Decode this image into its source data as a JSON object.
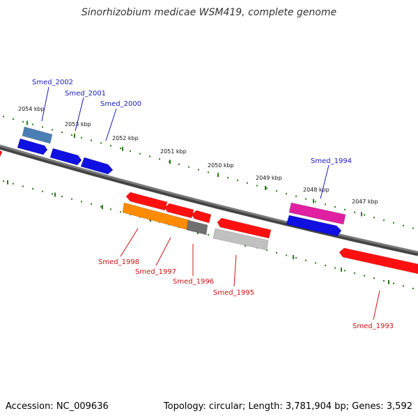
{
  "title": "Sinorhizobium medicae WSM419, complete genome",
  "footer": {
    "accession": "Accession: NC_009636",
    "topology": "Topology: circular; Length: 3,781,904 bp; Genes: 3,592"
  },
  "scale": {
    "color": "#2a7a1a",
    "labels": [
      "2054 kbp",
      "2053 kbp",
      "2052 kbp",
      "2051 kbp",
      "2050 kbp",
      "2049 kbp",
      "2048 kbp",
      "2047 kbp"
    ]
  },
  "colors": {
    "backbone": "#7a7a7a",
    "label_forward": "#1a1ac0",
    "label_reverse": "#d01010"
  },
  "genes_forward": [
    {
      "name": "Smed_2002",
      "color": "#4a7fb5"
    },
    {
      "name": "Smed_2001",
      "color": "#1010e0"
    },
    {
      "name": "Smed_2000",
      "color": "#1010e0"
    },
    {
      "name": "Smed_1994",
      "color": "#e020a0"
    }
  ],
  "genes_reverse": [
    {
      "name": "Smed_1998",
      "color": "#ff8c00"
    },
    {
      "name": "Smed_1997",
      "color": "#ff1010"
    },
    {
      "name": "Smed_1996",
      "color": "#ff1010"
    },
    {
      "name": "Smed_1995",
      "color": "#c0c0c0"
    },
    {
      "name": "Smed_1993",
      "color": "#ff1010"
    }
  ]
}
